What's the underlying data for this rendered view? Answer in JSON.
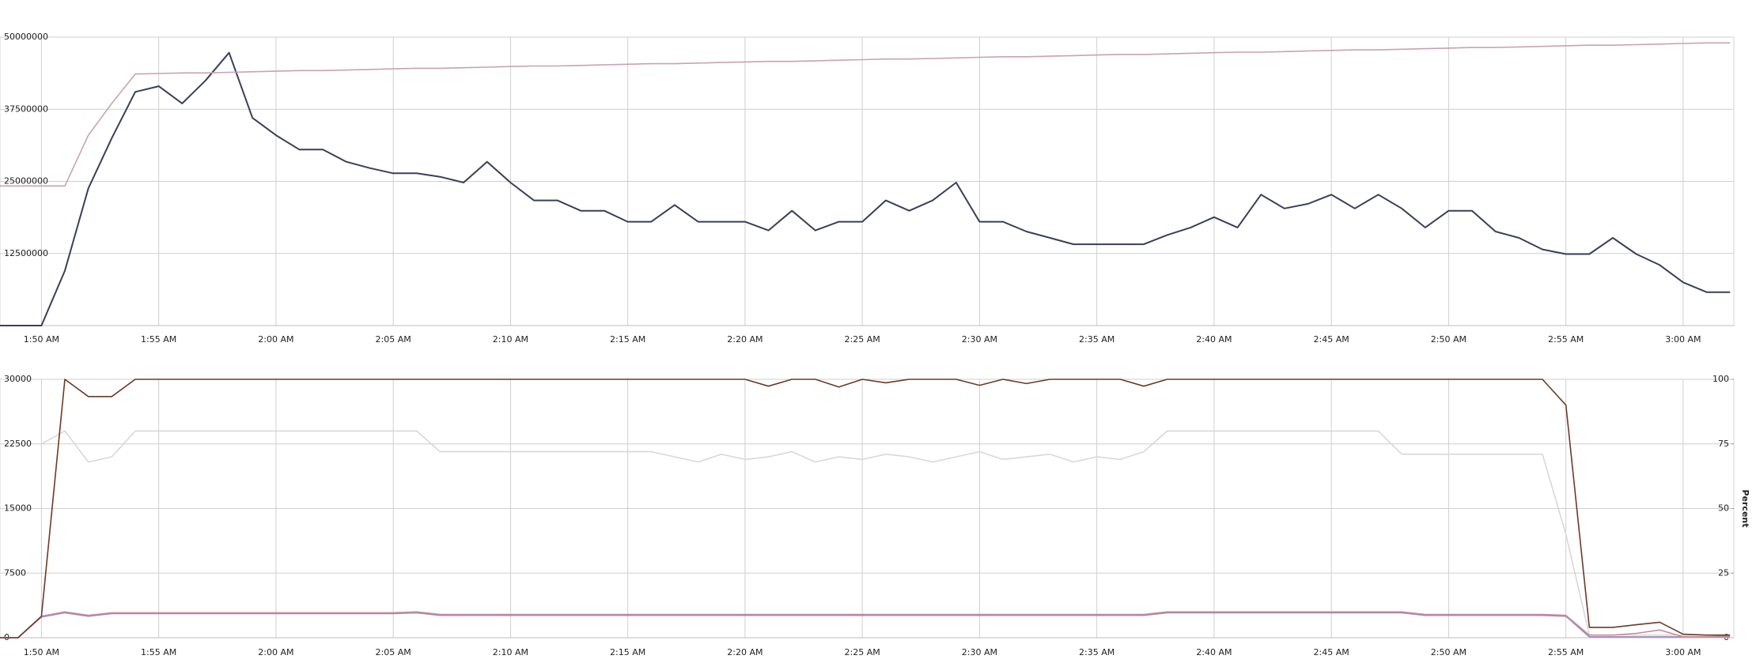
{
  "chart_data": [
    {
      "type": "line",
      "categories": [
        null,
        null,
        "1:50 AM",
        null,
        null,
        null,
        null,
        "1:55 AM",
        null,
        null,
        null,
        null,
        "2:00 AM",
        null,
        null,
        null,
        null,
        "2:05 AM",
        null,
        null,
        null,
        null,
        "2:10 AM",
        null,
        null,
        null,
        null,
        "2:15 AM",
        null,
        null,
        null,
        null,
        "2:20 AM",
        null,
        null,
        null,
        null,
        "2:25 AM",
        null,
        null,
        null,
        null,
        "2:30 AM",
        null,
        null,
        null,
        null,
        "2:35 AM",
        null,
        null,
        null,
        null,
        "2:40 AM",
        null,
        null,
        null,
        null,
        "2:45 AM",
        null,
        null,
        null,
        null,
        "2:50 AM",
        null,
        null,
        null,
        null,
        "2:55 AM",
        null,
        null,
        null,
        null,
        "3:00 AM",
        null,
        null
      ],
      "ylim": [
        0,
        50000000
      ],
      "yticks": [
        12500000,
        25000000,
        37500000,
        50000000
      ],
      "grid": true,
      "series": [
        {
          "color": "#3b3e5a",
          "values": [
            0,
            0,
            0,
            9500000,
            23800000,
            32500000,
            40500000,
            41500000,
            38500000,
            42500000,
            47300000,
            36000000,
            33000000,
            30500000,
            30500000,
            28400000,
            27300000,
            26400000,
            26400000,
            25800000,
            24800000,
            28400000,
            24800000,
            21700000,
            21700000,
            19900000,
            19900000,
            18000000,
            18000000,
            20900000,
            18000000,
            18000000,
            18000000,
            16500000,
            19900000,
            16500000,
            18000000,
            18000000,
            21700000,
            19900000,
            21700000,
            24800000,
            18000000,
            18000000,
            16300000,
            15200000,
            14100000,
            14100000,
            14100000,
            14100000,
            15700000,
            17000000,
            18800000,
            17000000,
            22700000,
            20300000,
            21100000,
            22700000,
            20300000,
            22700000,
            20300000,
            17000000,
            19900000,
            19900000,
            16300000,
            15200000,
            13200000,
            12400000,
            12400000,
            15200000,
            12400000,
            10500000,
            7500000,
            5800000,
            5800000
          ]
        },
        {
          "color": "#c9a3ab",
          "values": [
            24200000,
            24200000,
            24200000,
            24200000,
            33000000,
            38500000,
            43600000,
            43700000,
            43800000,
            43800000,
            43900000,
            44000000,
            44100000,
            44200000,
            44200000,
            44300000,
            44400000,
            44500000,
            44600000,
            44600000,
            44700000,
            44800000,
            44900000,
            45000000,
            45000000,
            45100000,
            45200000,
            45300000,
            45400000,
            45400000,
            45500000,
            45600000,
            45700000,
            45800000,
            45800000,
            45900000,
            46000000,
            46100000,
            46200000,
            46200000,
            46300000,
            46400000,
            46500000,
            46600000,
            46600000,
            46700000,
            46800000,
            46900000,
            47000000,
            47000000,
            47100000,
            47200000,
            47300000,
            47400000,
            47400000,
            47500000,
            47600000,
            47700000,
            47800000,
            47800000,
            47900000,
            48000000,
            48100000,
            48200000,
            48200000,
            48300000,
            48400000,
            48500000,
            48600000,
            48600000,
            48700000,
            48800000,
            48900000,
            49000000,
            49000000
          ]
        }
      ]
    },
    {
      "type": "line",
      "categories": [
        null,
        null,
        "1:50 AM",
        null,
        null,
        null,
        null,
        "1:55 AM",
        null,
        null,
        null,
        null,
        "2:00 AM",
        null,
        null,
        null,
        null,
        "2:05 AM",
        null,
        null,
        null,
        null,
        "2:10 AM",
        null,
        null,
        null,
        null,
        "2:15 AM",
        null,
        null,
        null,
        null,
        "2:20 AM",
        null,
        null,
        null,
        null,
        "2:25 AM",
        null,
        null,
        null,
        null,
        "2:30 AM",
        null,
        null,
        null,
        null,
        "2:35 AM",
        null,
        null,
        null,
        null,
        "2:40 AM",
        null,
        null,
        null,
        null,
        "2:45 AM",
        null,
        null,
        null,
        null,
        "2:50 AM",
        null,
        null,
        null,
        null,
        "2:55 AM",
        null,
        null,
        null,
        null,
        "3:00 AM",
        null,
        null
      ],
      "ylim": [
        0,
        30000
      ],
      "yticks": [
        0,
        7500,
        15000,
        22500,
        30000
      ],
      "y2lim": [
        0,
        100
      ],
      "y2ticks": [
        0,
        25,
        50,
        75,
        100
      ],
      "y2label": "Percent",
      "grid": true,
      "series": [
        {
          "color": "#dcd6d9",
          "axis": "y2",
          "values": [
            null,
            null,
            75,
            80,
            68,
            70,
            80,
            80,
            80,
            80,
            80,
            80,
            80,
            80,
            80,
            80,
            80,
            80,
            80,
            72,
            72,
            72,
            72,
            72,
            72,
            72,
            72,
            72,
            72,
            70,
            68,
            71,
            69,
            70,
            72,
            68,
            70,
            69,
            71,
            70,
            68,
            70,
            72,
            69,
            70,
            71,
            68,
            70,
            69,
            72,
            80,
            80,
            80,
            80,
            80,
            80,
            80,
            80,
            80,
            80,
            71,
            71,
            71,
            71,
            71,
            71,
            71,
            40,
            1,
            1,
            1,
            1,
            1,
            1,
            1
          ]
        },
        {
          "color": "#9a86b8",
          "values": [
            0,
            0,
            2400,
            2900,
            2500,
            2800,
            2800,
            2800,
            2800,
            2800,
            2800,
            2800,
            2800,
            2800,
            2800,
            2800,
            2800,
            2800,
            2900,
            2600,
            2600,
            2600,
            2600,
            2600,
            2600,
            2600,
            2600,
            2600,
            2600,
            2600,
            2600,
            2600,
            2600,
            2600,
            2600,
            2600,
            2600,
            2600,
            2600,
            2600,
            2600,
            2600,
            2600,
            2600,
            2600,
            2600,
            2600,
            2600,
            2600,
            2600,
            2900,
            2900,
            2900,
            2900,
            2900,
            2900,
            2900,
            2900,
            2900,
            2900,
            2900,
            2600,
            2600,
            2600,
            2600,
            2600,
            2600,
            2500,
            100,
            100,
            100,
            100,
            100,
            100,
            100
          ]
        },
        {
          "color": "#c98a9b",
          "values": [
            0,
            0,
            2500,
            3000,
            2600,
            2900,
            2900,
            2900,
            2900,
            2900,
            2900,
            2900,
            2900,
            2900,
            2900,
            2900,
            2900,
            2900,
            3000,
            2700,
            2700,
            2700,
            2700,
            2700,
            2700,
            2700,
            2700,
            2700,
            2700,
            2700,
            2700,
            2700,
            2700,
            2700,
            2700,
            2700,
            2700,
            2700,
            2700,
            2700,
            2700,
            2700,
            2700,
            2700,
            2700,
            2700,
            2700,
            2700,
            2700,
            2700,
            3000,
            3000,
            3000,
            3000,
            3000,
            3000,
            3000,
            3000,
            3000,
            3000,
            3000,
            2700,
            2700,
            2700,
            2700,
            2700,
            2700,
            2600,
            300,
            300,
            500,
            900,
            100,
            100,
            200
          ]
        },
        {
          "color": "#6b3a2a",
          "values": [
            0,
            0,
            2500,
            30000,
            28000,
            28000,
            30000,
            30000,
            30000,
            30000,
            30000,
            30000,
            30000,
            30000,
            30000,
            30000,
            30000,
            30000,
            30000,
            30000,
            30000,
            30000,
            30000,
            30000,
            30000,
            30000,
            30000,
            30000,
            30000,
            30000,
            30000,
            30000,
            30000,
            29200,
            30000,
            30000,
            29100,
            30000,
            29600,
            30000,
            30000,
            30000,
            29300,
            30000,
            29500,
            30000,
            30000,
            30000,
            30000,
            29200,
            30000,
            30000,
            30000,
            30000,
            30000,
            30000,
            30000,
            30000,
            30000,
            30000,
            30000,
            30000,
            30000,
            30000,
            30000,
            30000,
            30000,
            27000,
            1200,
            1200,
            1500,
            1800,
            400,
            300,
            300
          ]
        }
      ]
    }
  ]
}
